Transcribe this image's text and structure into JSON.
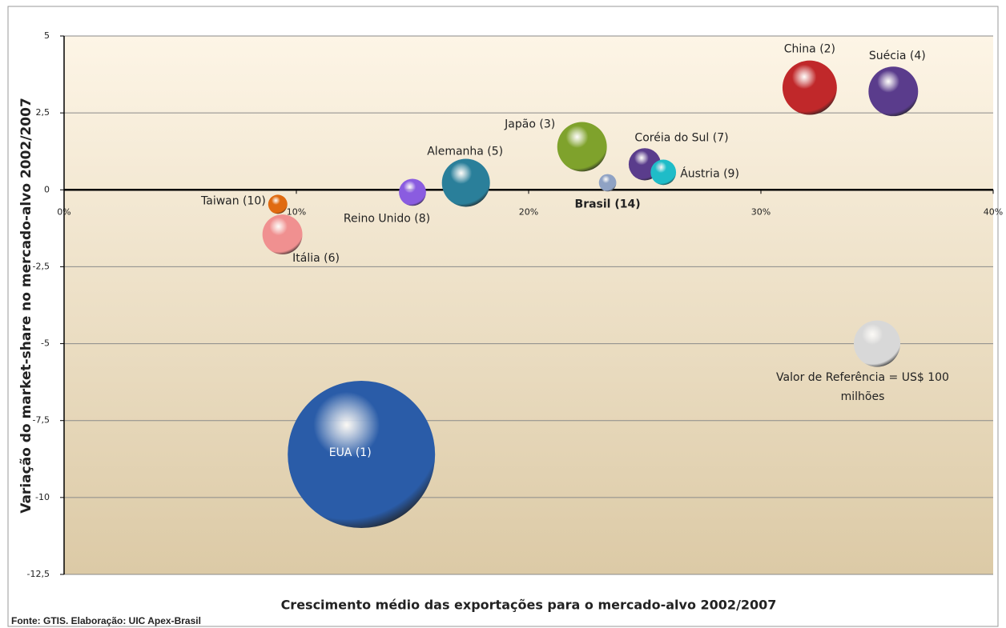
{
  "chart_data": {
    "type": "bubble",
    "xlabel": "Crescimento médio das exportações para o mercado-alvo 2002/2007",
    "ylabel": "Variação do market-share no mercado-alvo 2002/2007",
    "source": "Fonte: GTIS. Elaboração: UIC Apex-Brasil",
    "labels": [
      "China (2)",
      "Suécia (4)",
      "Japão (3)",
      "Coréia do Sul (7)",
      "Áustria (9)",
      "Brasil (14)",
      "Alemanha (5)",
      "Reino Unido (8)",
      "Taiwan (10)",
      "Itália (6)",
      "EUA (1)"
    ],
    "x": [
      32.1,
      35.7,
      22.3,
      25.0,
      25.8,
      23.4,
      17.3,
      15.0,
      9.2,
      9.4,
      12.8
    ],
    "values": [
      3.32,
      3.2,
      1.4,
      0.83,
      0.57,
      0.23,
      0.23,
      -0.08,
      -0.47,
      -1.45,
      -8.6
    ],
    "sizes": [
      137,
      114,
      114,
      48,
      30,
      14,
      107,
      34,
      17,
      74,
      1006
    ],
    "colors": [
      "#c0282a",
      "#5a3c8c",
      "#7fa22c",
      "#5a3c8c",
      "#1fbcc8",
      "#8fa2c4",
      "#2a7f9a",
      "#8a5ce0",
      "#e06a10",
      "#f09090",
      "#2a5ca8"
    ],
    "reference": {
      "label": "Valor de Referência = US$ 100 milhões",
      "x": 35.0,
      "value": -5.0,
      "size": 100,
      "color": "#d8d8d8"
    },
    "xlim": [
      0,
      40
    ],
    "xticks": [
      {
        "value": 0,
        "label": "0%"
      },
      {
        "value": 10,
        "label": "10%"
      },
      {
        "value": 20,
        "label": "20%"
      },
      {
        "value": 30,
        "label": "30%"
      },
      {
        "value": 40,
        "label": "40%"
      }
    ],
    "ylim": [
      -12.5,
      5
    ],
    "yticks": [
      5,
      {
        "value": 2.5,
        "label": "2,5"
      },
      0,
      {
        "value": -2.5,
        "label": "-2,5"
      },
      -5,
      {
        "value": -7.5,
        "label": "-7,5"
      },
      -10,
      {
        "value": -12.5,
        "label": "-12,5"
      }
    ],
    "grid": true
  }
}
